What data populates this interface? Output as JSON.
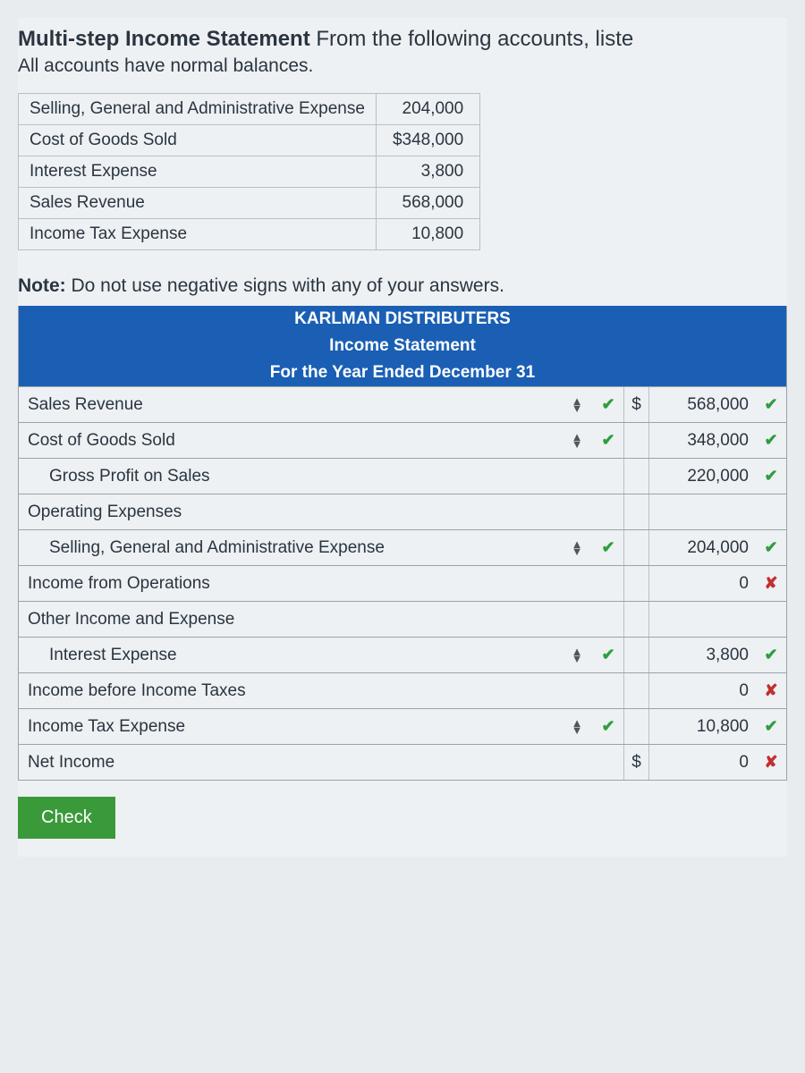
{
  "title_bold": "Multi-step Income Statement",
  "title_rest": " From the following accounts, liste",
  "subtitle": "All accounts have normal balances.",
  "accounts": {
    "rows": [
      {
        "label": "Selling, General and Administrative Expense",
        "value": "204,000"
      },
      {
        "label": "Cost of Goods Sold",
        "value": "$348,000"
      },
      {
        "label": "Interest Expense",
        "value": "3,800"
      },
      {
        "label": "Sales Revenue",
        "value": "568,000"
      },
      {
        "label": "Income Tax Expense",
        "value": "10,800"
      }
    ]
  },
  "note_bold": "Note:",
  "note_rest": " Do not use negative signs with any of your answers.",
  "statement": {
    "header": {
      "company": "KARLMAN DISTRIBUTERS",
      "title": "Income Statement",
      "period": "For the Year Ended December 31"
    },
    "rows": [
      {
        "label": "Sales Revenue",
        "indent": 0,
        "sort": true,
        "mark1": "check",
        "dollar": "$",
        "value": "568,000",
        "mark2": "check"
      },
      {
        "label": "Cost of Goods Sold",
        "indent": 0,
        "sort": true,
        "mark1": "check",
        "dollar": "",
        "value": "348,000",
        "mark2": "check"
      },
      {
        "label": "Gross Profit on Sales",
        "indent": 1,
        "sort": false,
        "mark1": "",
        "dollar": "",
        "value": "220,000",
        "mark2": "check"
      },
      {
        "label": "Operating Expenses",
        "indent": 0,
        "sort": false,
        "mark1": "",
        "dollar": "",
        "value": "",
        "mark2": ""
      },
      {
        "label": "Selling, General and Administrative Expense",
        "indent": 1,
        "sort": true,
        "mark1": "check",
        "dollar": "",
        "value": "204,000",
        "mark2": "check"
      },
      {
        "label": "Income from Operations",
        "indent": 0,
        "sort": false,
        "mark1": "",
        "dollar": "",
        "value": "0",
        "mark2": "cross"
      },
      {
        "label": "Other Income and Expense",
        "indent": 0,
        "sort": false,
        "mark1": "",
        "dollar": "",
        "value": "",
        "mark2": ""
      },
      {
        "label": "Interest Expense",
        "indent": 1,
        "sort": true,
        "mark1": "check",
        "dollar": "",
        "value": "3,800",
        "mark2": "check"
      },
      {
        "label": "Income before Income Taxes",
        "indent": 0,
        "sort": false,
        "mark1": "",
        "dollar": "",
        "value": "0",
        "mark2": "cross"
      },
      {
        "label": "Income Tax Expense",
        "indent": 0,
        "sort": true,
        "mark1": "check",
        "dollar": "",
        "value": "10,800",
        "mark2": "check"
      },
      {
        "label": "Net Income",
        "indent": 0,
        "sort": false,
        "mark1": "",
        "dollar": "$",
        "value": "0",
        "mark2": "cross"
      }
    ]
  },
  "check_button": "Check",
  "colors": {
    "header_bg": "#1a5fb4",
    "button_bg": "#3a9a3a",
    "check": "#2e9e3f",
    "cross": "#c23030",
    "border": "#9aa3ab"
  }
}
